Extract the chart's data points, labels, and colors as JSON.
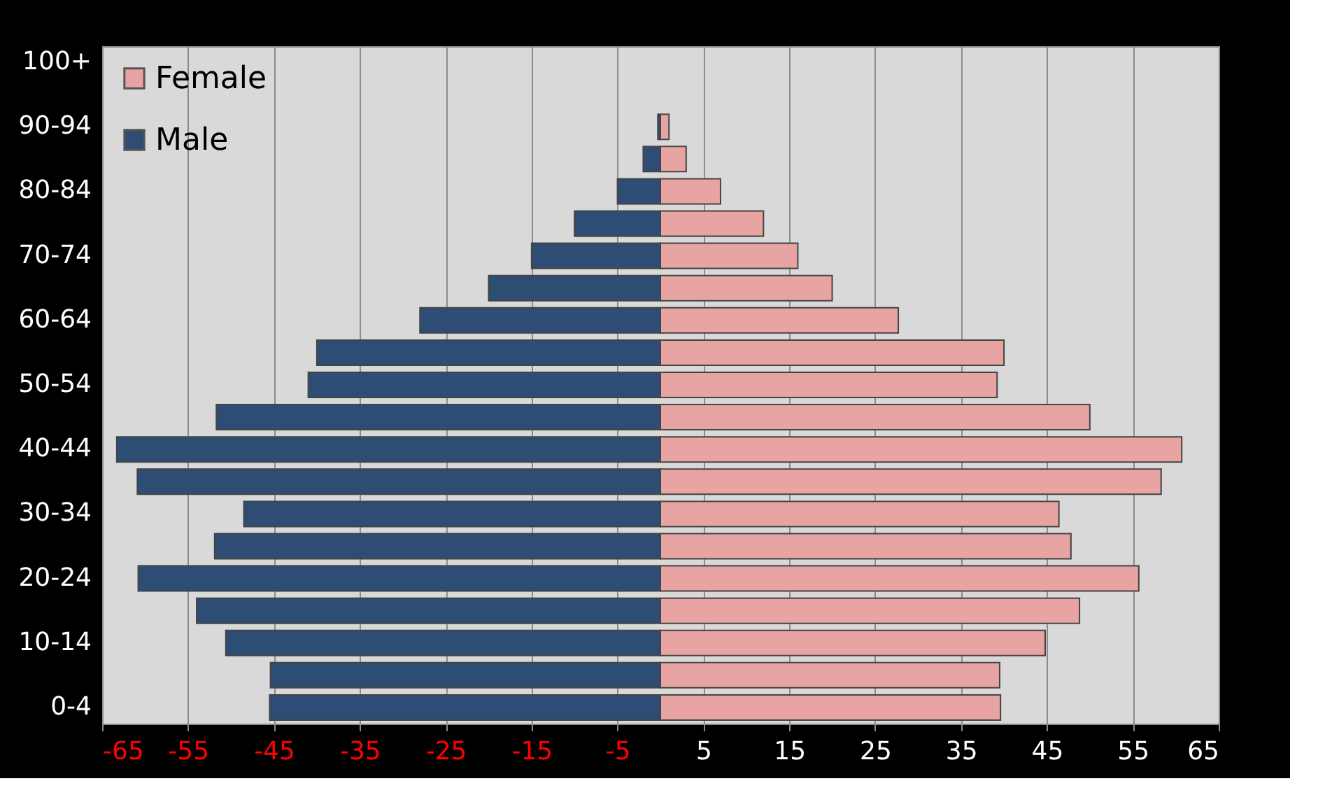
{
  "chart_data": {
    "type": "bar",
    "orientation": "horizontal",
    "categories": [
      "100+",
      null,
      "90-94",
      null,
      "80-84",
      null,
      "70-74",
      null,
      "60-64",
      null,
      "50-54",
      null,
      "40-44",
      null,
      "30-34",
      null,
      "20-24",
      null,
      "10-14",
      null,
      "0-4"
    ],
    "series": [
      {
        "name": "Female",
        "color": "#e8a3a3",
        "values": [
          null,
          null,
          1,
          3,
          7,
          12,
          16,
          20,
          27.7,
          40,
          39.2,
          50,
          60.7,
          58.3,
          46.4,
          47.8,
          55.7,
          48.8,
          44.8,
          39.5,
          39.6
        ]
      },
      {
        "name": "Male",
        "color": "#2e4d74",
        "values": [
          null,
          null,
          -0.3,
          -2,
          -5,
          -10,
          -15,
          -20,
          -28,
          -40,
          -41,
          -51.7,
          -63.3,
          -60.9,
          -48.5,
          -51.9,
          -60.8,
          -54,
          -50.6,
          -45.4,
          -45.5
        ]
      }
    ],
    "xlim": [
      -65,
      65
    ],
    "xticks": [
      -65,
      -55,
      -45,
      -35,
      -25,
      -15,
      -5,
      5,
      15,
      25,
      35,
      45,
      55,
      65
    ],
    "stacked": true,
    "grid": "x",
    "legend": "top left"
  }
}
